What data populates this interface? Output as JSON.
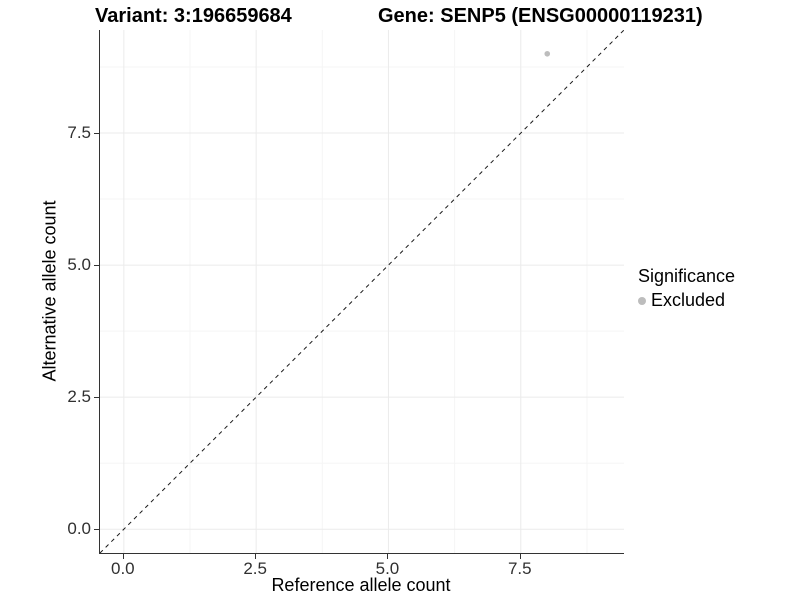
{
  "titles": {
    "variant": "Variant: 3:196659684",
    "gene": "Gene: SENP5 (ENSG00000119231)"
  },
  "axes": {
    "x": {
      "label": "Reference allele count",
      "tick_labels": [
        "0.0",
        "2.5",
        "5.0",
        "7.5"
      ]
    },
    "y": {
      "label": "Alternative allele count",
      "tick_labels": [
        "0.0",
        "2.5",
        "5.0",
        "7.5"
      ]
    }
  },
  "legend": {
    "title": "Significance",
    "items": [
      {
        "label": "Excluded",
        "color": "#bdbdbd"
      }
    ]
  },
  "chart_data": {
    "type": "scatter",
    "title": "Variant: 3:196659684 | Gene: SENP5 (ENSG00000119231)",
    "xlabel": "Reference allele count",
    "ylabel": "Alternative allele count",
    "xlim": [
      -0.45,
      9.45
    ],
    "ylim": [
      -0.45,
      9.45
    ],
    "x_ticks": [
      0,
      2.5,
      5,
      7.5
    ],
    "y_ticks": [
      0,
      2.5,
      5,
      7.5
    ],
    "x_minor_ticks": [
      1.25,
      3.75,
      6.25,
      8.75
    ],
    "y_minor_ticks": [
      1.25,
      3.75,
      6.25,
      8.75
    ],
    "grid": "major+minor",
    "grid_major_color": "#ebebeb",
    "grid_minor_color": "#f5f5f5",
    "identity_line": {
      "slope": 1,
      "intercept": 0,
      "style": "dashed",
      "color": "#1a1a1a"
    },
    "series": [
      {
        "name": "Excluded",
        "color": "#bdbdbd",
        "points": [
          {
            "x": 8,
            "y": 9
          }
        ]
      }
    ],
    "legend_title": "Significance",
    "legend_position": "right"
  }
}
